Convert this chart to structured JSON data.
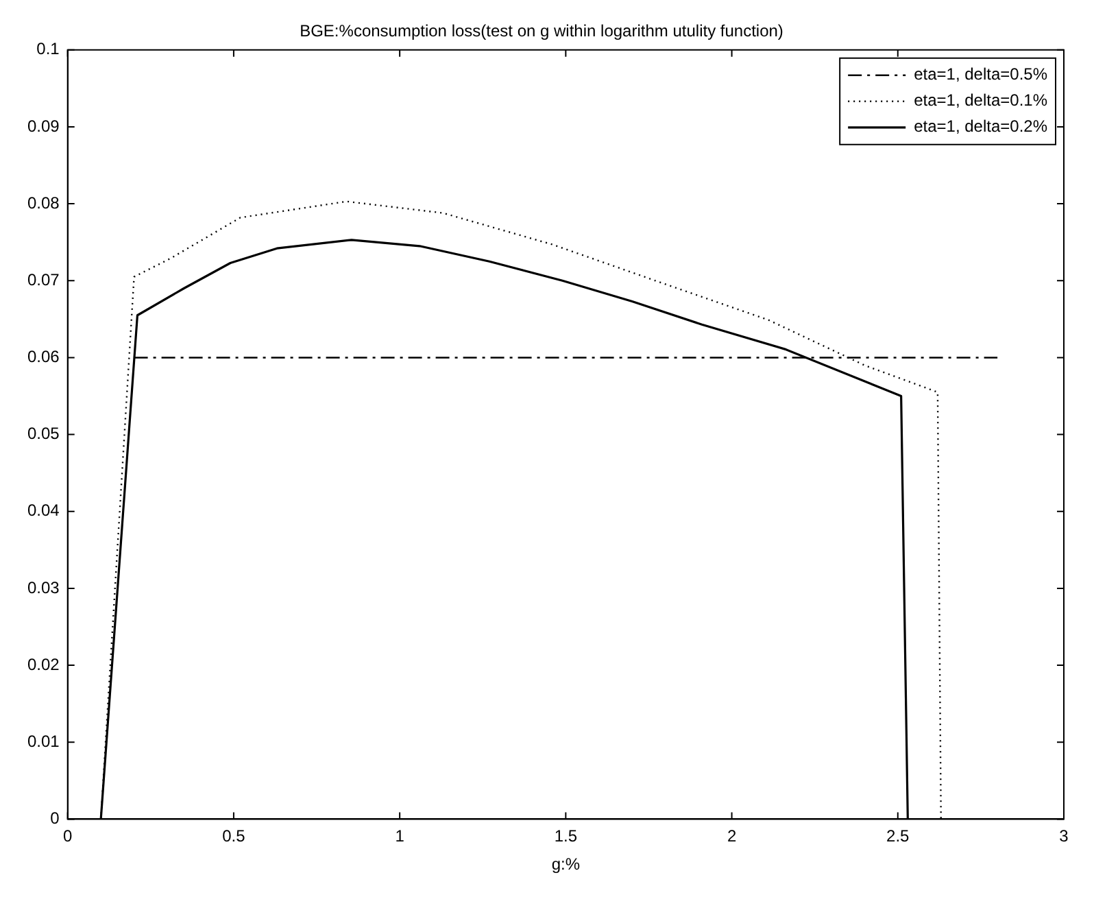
{
  "chart_data": {
    "type": "line",
    "title": "BGE:%consumption loss(test on g within logarithm utulity function)",
    "xlabel": "g:%",
    "xlim": [
      0,
      3
    ],
    "xticks": [
      0,
      0.5,
      1,
      1.5,
      2,
      2.5,
      3
    ],
    "ylim": [
      0,
      0.1
    ],
    "yticks": [
      0,
      0.01,
      0.02,
      0.03,
      0.04,
      0.05,
      0.06,
      0.07,
      0.08,
      0.09,
      0.1
    ],
    "grid": false,
    "legend": "top right",
    "marker": "none",
    "series": [
      {
        "name": "eta=1, delta=0.5%",
        "color": "#000000",
        "line_style": "dashdot",
        "x": [
          0.2,
          2.8
        ],
        "values": [
          0.06,
          0.06
        ]
      },
      {
        "name": "eta=1, delta=0.1%",
        "color": "#000000",
        "line_style": "dotted",
        "x": [
          0.1,
          0.2,
          0.31,
          0.52,
          0.84,
          1.13,
          1.46,
          1.77,
          2.11,
          2.4,
          2.62,
          2.63
        ],
        "values": [
          0,
          0.0705,
          0.0729,
          0.0782,
          0.0803,
          0.0788,
          0.0747,
          0.07,
          0.0649,
          0.059,
          0.0555,
          0
        ]
      },
      {
        "name": "eta=1, delta=0.2%",
        "color": "#000000",
        "line_style": "solid",
        "x": [
          0.1,
          0.21,
          0.35,
          0.49,
          0.63,
          0.855,
          1.06,
          1.27,
          1.49,
          1.7,
          1.91,
          2.16,
          2.51,
          2.53
        ],
        "values": [
          0,
          0.0655,
          0.069,
          0.0723,
          0.0742,
          0.0753,
          0.0745,
          0.0725,
          0.07,
          0.0673,
          0.0643,
          0.0611,
          0.055,
          0
        ]
      }
    ]
  }
}
